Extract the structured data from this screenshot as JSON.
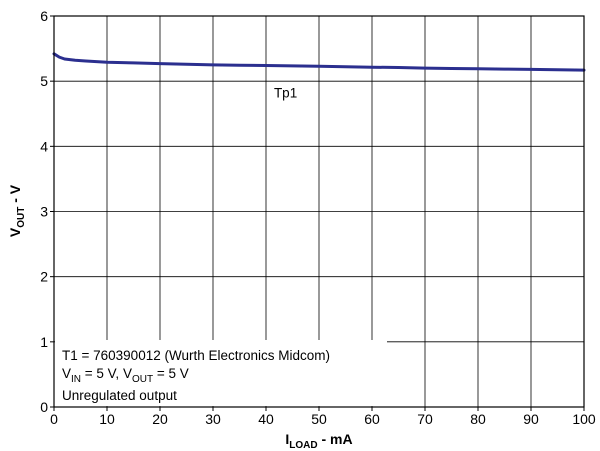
{
  "chart_data": {
    "type": "line",
    "xlim": [
      0,
      100
    ],
    "ylim": [
      0,
      6
    ],
    "x_ticks": [
      "0",
      "10",
      "20",
      "30",
      "40",
      "50",
      "60",
      "70",
      "80",
      "90",
      "100"
    ],
    "y_ticks": [
      "0",
      "1",
      "2",
      "3",
      "4",
      "5",
      "6"
    ],
    "grid": true,
    "xlabel": {
      "main": "I",
      "sub": "LOAD",
      "suffix": " - mA"
    },
    "ylabel": {
      "main": "V",
      "sub": "OUT",
      "suffix": " - V"
    },
    "series": [
      {
        "name": "Tp1",
        "color": "#2b2f8f",
        "x": [
          0,
          1,
          2,
          4,
          6,
          8,
          10,
          15,
          20,
          25,
          30,
          35,
          40,
          45,
          50,
          55,
          60,
          65,
          70,
          75,
          80,
          85,
          90,
          95,
          100
        ],
        "y": [
          5.42,
          5.37,
          5.34,
          5.32,
          5.31,
          5.3,
          5.29,
          5.28,
          5.27,
          5.26,
          5.25,
          5.245,
          5.24,
          5.235,
          5.23,
          5.22,
          5.215,
          5.21,
          5.2,
          5.195,
          5.19,
          5.185,
          5.18,
          5.175,
          5.17
        ]
      }
    ],
    "annotations": {
      "line1": "T1 = 760390012 (Wurth Electronics Midcom)",
      "line2": {
        "v1": "V",
        "v1_sub": "IN",
        "v1_rest": " = 5 V, ",
        "v2": "V",
        "v2_sub": "OUT",
        "v2_rest": " = 5 V"
      },
      "line3": "Unregulated output"
    }
  }
}
